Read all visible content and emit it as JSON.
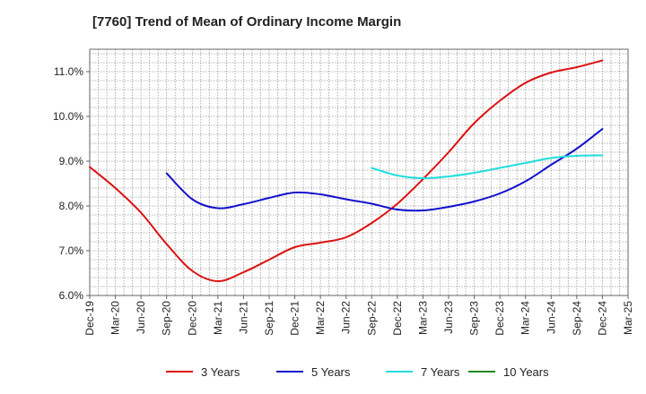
{
  "chart_data": {
    "type": "line",
    "title": "[7760]  Trend of Mean of Ordinary Income Margin",
    "xlabel": "",
    "ylabel": "",
    "x_ticks": [
      "Dec-19",
      "Mar-20",
      "Jun-20",
      "Sep-20",
      "Dec-20",
      "Mar-21",
      "Jun-21",
      "Sep-21",
      "Dec-21",
      "Mar-22",
      "Jun-22",
      "Sep-22",
      "Dec-22",
      "Mar-23",
      "Jun-23",
      "Sep-23",
      "Dec-23",
      "Mar-24",
      "Jun-24",
      "Sep-24",
      "Dec-24",
      "Mar-25"
    ],
    "y_ticks": [
      "6.0%",
      "7.0%",
      "8.0%",
      "9.0%",
      "10.0%",
      "11.0%"
    ],
    "ylim": [
      6.0,
      11.5
    ],
    "grid": true,
    "legend_position": "bottom",
    "series": [
      {
        "name": "3 Years",
        "color": "#dd1111",
        "x": [
          "Dec-19",
          "Mar-20",
          "Jun-20",
          "Sep-20",
          "Dec-20",
          "Mar-21",
          "Jun-21",
          "Sep-21",
          "Dec-21",
          "Mar-22",
          "Jun-22",
          "Sep-22",
          "Dec-22",
          "Mar-23",
          "Jun-23",
          "Sep-23",
          "Dec-23",
          "Mar-24",
          "Jun-24",
          "Sep-24",
          "Dec-24"
        ],
        "values": [
          8.87,
          8.4,
          7.85,
          7.15,
          6.55,
          6.32,
          6.52,
          6.8,
          7.08,
          7.18,
          7.3,
          7.62,
          8.05,
          8.6,
          9.2,
          9.85,
          10.35,
          10.75,
          10.98,
          11.1,
          11.25
        ]
      },
      {
        "name": "5 Years",
        "color": "#1111cc",
        "x": [
          "Sep-20",
          "Dec-20",
          "Mar-21",
          "Jun-21",
          "Sep-21",
          "Dec-21",
          "Mar-22",
          "Jun-22",
          "Sep-22",
          "Dec-22",
          "Mar-23",
          "Jun-23",
          "Sep-23",
          "Dec-23",
          "Mar-24",
          "Jun-24",
          "Sep-24",
          "Dec-24"
        ],
        "values": [
          8.73,
          8.15,
          7.95,
          8.04,
          8.18,
          8.3,
          8.26,
          8.15,
          8.05,
          7.92,
          7.9,
          7.98,
          8.1,
          8.28,
          8.55,
          8.92,
          9.28,
          9.72
        ]
      },
      {
        "name": "7 Years",
        "color": "#22dddd",
        "x": [
          "Sep-22",
          "Dec-22",
          "Mar-23",
          "Jun-23",
          "Sep-23",
          "Dec-23",
          "Mar-24",
          "Jun-24",
          "Sep-24",
          "Dec-24"
        ],
        "values": [
          8.85,
          8.68,
          8.62,
          8.66,
          8.74,
          8.85,
          8.96,
          9.07,
          9.12,
          9.13
        ]
      },
      {
        "name": "10 Years",
        "color": "#228822",
        "x": [],
        "values": []
      }
    ]
  }
}
